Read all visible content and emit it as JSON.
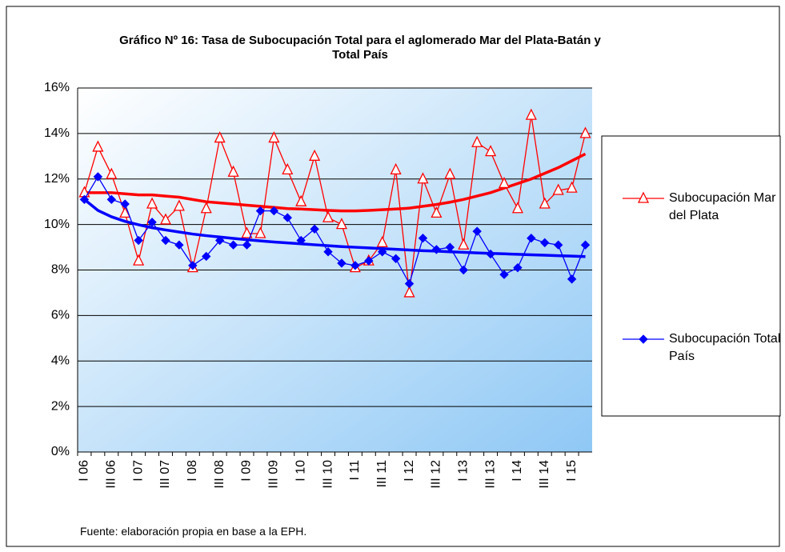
{
  "chart_data": {
    "type": "line",
    "title": "Gráfico Nº 16: Tasa de Subocupación Total para el aglomerado Mar del Plata-Batán y Total País",
    "note": "Fuente: elaboración propia en base a la EPH.",
    "categories": [
      "I 06",
      null,
      "III 06",
      null,
      "I 07",
      null,
      "III 07",
      null,
      "I 08",
      null,
      "III 08",
      null,
      "I 09",
      null,
      "III 09",
      null,
      "I 10",
      null,
      "III 10",
      null,
      "I 11",
      null,
      "III 11",
      null,
      "I 12",
      null,
      "III 12",
      null,
      "I 13",
      null,
      "III 13",
      null,
      "I 14",
      null,
      "III 14",
      null,
      "I 15",
      null
    ],
    "ylim": [
      0,
      16
    ],
    "yticks": [
      {
        "value": 0,
        "label": "0%"
      },
      {
        "value": 2,
        "label": "2%"
      },
      {
        "value": 4,
        "label": "4%"
      },
      {
        "value": 6,
        "label": "6%"
      },
      {
        "value": 8,
        "label": "8%"
      },
      {
        "value": 10,
        "label": "10%"
      },
      {
        "value": 12,
        "label": "12%"
      },
      {
        "value": 14,
        "label": "14%"
      },
      {
        "value": 16,
        "label": "16%"
      }
    ],
    "grid": true,
    "legend": "right",
    "series": [
      {
        "name": "Subocupación Mar del Plata",
        "color": "#ff0000",
        "marker": "triangle",
        "values": [
          11.4,
          13.4,
          12.2,
          10.5,
          8.4,
          10.9,
          10.2,
          10.8,
          8.1,
          10.7,
          13.8,
          12.3,
          9.6,
          9.6,
          13.8,
          12.4,
          11.0,
          13.0,
          10.3,
          10.0,
          8.1,
          8.4,
          9.2,
          12.4,
          7.0,
          12.0,
          10.5,
          12.2,
          9.1,
          13.6,
          13.2,
          11.8,
          10.7,
          14.8,
          10.9,
          11.5,
          11.6,
          14.0
        ],
        "trend": [
          11.4,
          11.4,
          11.4,
          11.35,
          11.3,
          11.3,
          11.25,
          11.2,
          11.1,
          11.0,
          10.95,
          10.9,
          10.85,
          10.8,
          10.75,
          10.7,
          10.68,
          10.65,
          10.62,
          10.6,
          10.6,
          10.62,
          10.65,
          10.68,
          10.72,
          10.8,
          10.88,
          10.98,
          11.1,
          11.25,
          11.4,
          11.6,
          11.8,
          12.0,
          12.25,
          12.5,
          12.8,
          13.1
        ]
      },
      {
        "name": "Subocupación Total País",
        "color": "#0000ff",
        "marker": "diamond",
        "values": [
          11.1,
          12.1,
          11.1,
          10.9,
          9.3,
          10.1,
          9.3,
          9.1,
          8.2,
          8.6,
          9.3,
          9.1,
          9.1,
          10.6,
          10.6,
          10.3,
          9.3,
          9.8,
          8.8,
          8.3,
          8.2,
          8.4,
          8.8,
          8.5,
          7.4,
          9.4,
          8.9,
          9.0,
          8.0,
          9.7,
          8.7,
          7.8,
          8.1,
          9.4,
          9.2,
          9.1,
          7.6,
          9.1
        ],
        "trend": [
          11.1,
          10.62,
          10.34,
          10.14,
          9.99,
          9.86,
          9.76,
          9.67,
          9.58,
          9.51,
          9.45,
          9.39,
          9.33,
          9.28,
          9.23,
          9.19,
          9.15,
          9.11,
          9.07,
          9.03,
          9.0,
          8.97,
          8.94,
          8.91,
          8.88,
          8.85,
          8.83,
          8.8,
          8.78,
          8.75,
          8.73,
          8.71,
          8.69,
          8.67,
          8.65,
          8.63,
          8.61,
          8.59
        ]
      }
    ]
  }
}
